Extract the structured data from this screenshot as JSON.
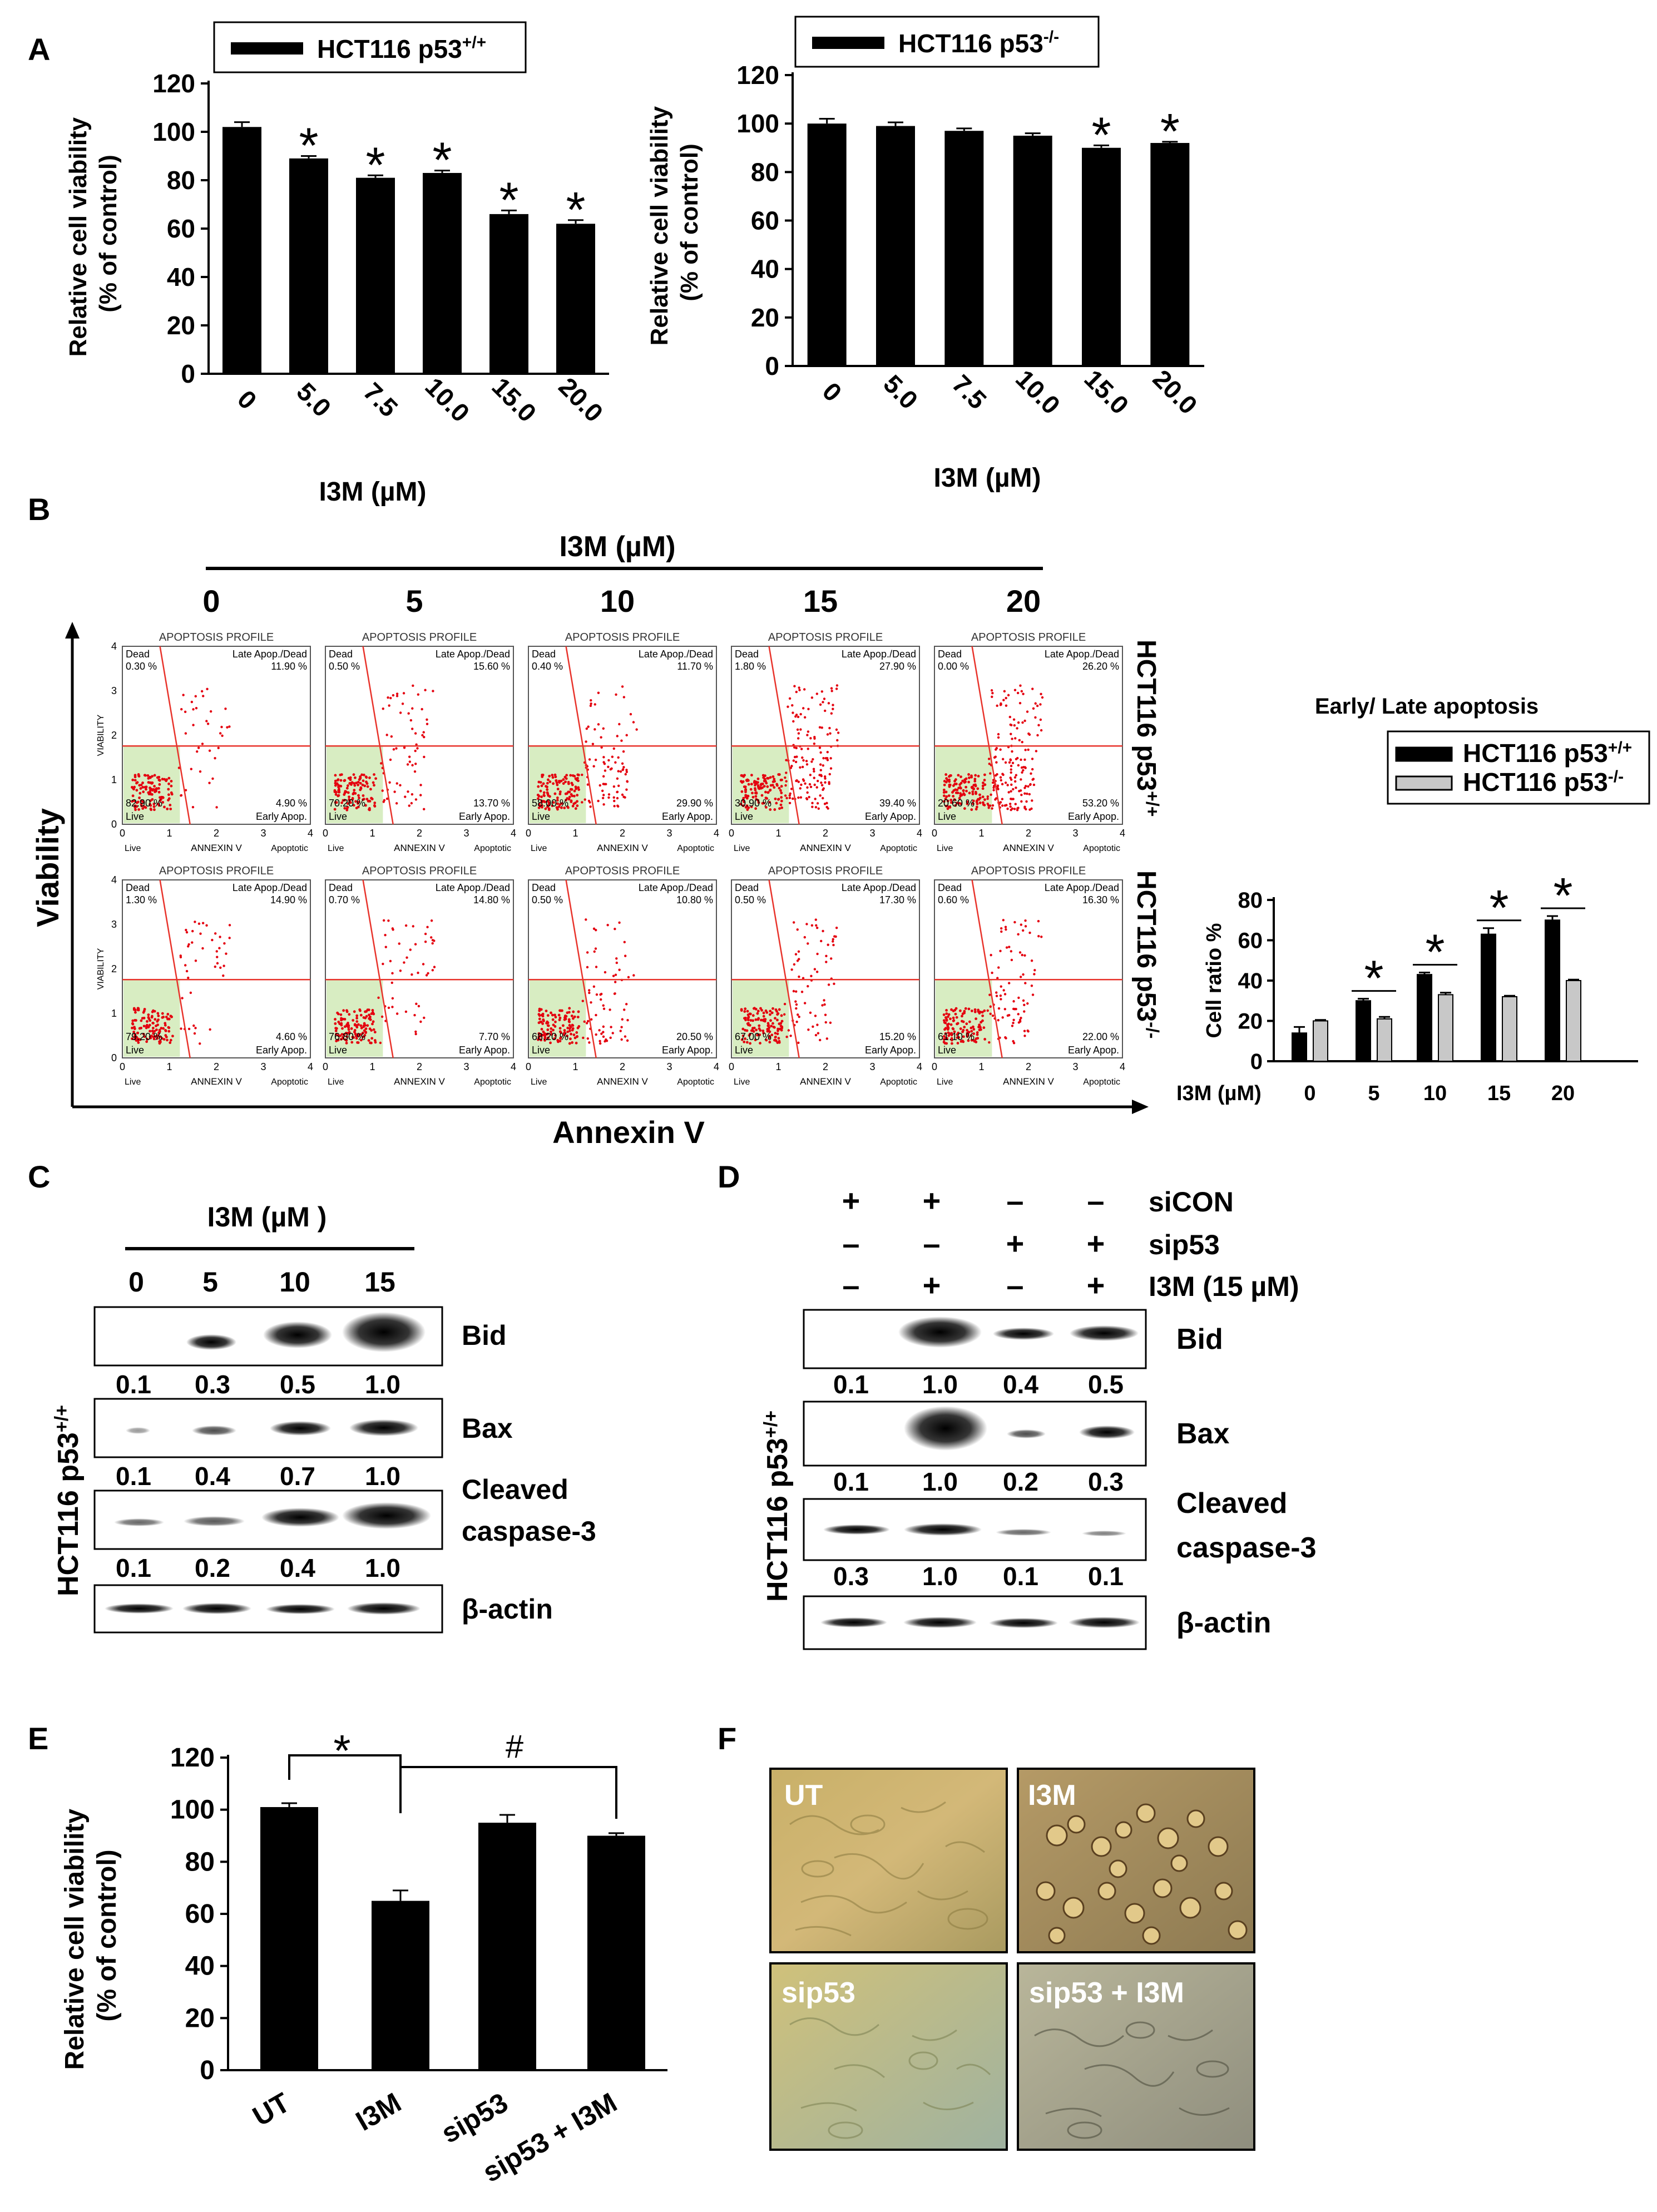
{
  "colors": {
    "bar_dark": "#000000",
    "bar_light": "#c8c8c8",
    "dot_red": "#e4000f",
    "gate_line": "#e8332b",
    "live_quadrant": "#d8edc2",
    "micro_warm": "#c9b068",
    "micro_cool": "#c2c29a"
  },
  "panels": {
    "A": {
      "letter": "A",
      "xlabel": "I3M (µM)",
      "ylabel_1": "Relative cell viability",
      "ylabel_2": "(% of control)"
    },
    "B": {
      "letter": "B",
      "treatment_title": "I3M (µM)",
      "y_axis_label": "Viability",
      "x_axis_label": "Annexin V",
      "row_labels": [
        "HCT116 p53+/+",
        "HCT116 p53-/-"
      ],
      "flow_ticks": [
        "0",
        "1",
        "2",
        "3",
        "4"
      ],
      "flow_x_caption": [
        "Live",
        "ANNEXIN V",
        "Apoptotic"
      ],
      "flow_y_caption": "VIABILITY",
      "flow_panel_title": "APOPTOSIS PROFILE",
      "quadrant_labels": {
        "dead": "Dead",
        "late": "Late Apop./Dead",
        "live": "Live",
        "early": "Early Apop."
      }
    },
    "C": {
      "letter": "C",
      "treatment_title": "I3M (µM )",
      "doses": [
        "0",
        "5",
        "10",
        "15"
      ],
      "cell_line": "HCT116 p53+/+",
      "blots": [
        {
          "label": "Bid",
          "values": [
            "0.1",
            "0.3",
            "0.5",
            "1.0"
          ]
        },
        {
          "label": "Bax",
          "values": [
            "0.1",
            "0.4",
            "0.7",
            "1.0"
          ]
        },
        {
          "label_1": "Cleaved",
          "label_2": "caspase-3",
          "values": [
            "0.1",
            "0.2",
            "0.4",
            "1.0"
          ]
        },
        {
          "label": "β-actin"
        }
      ]
    },
    "D": {
      "letter": "D",
      "cell_line": "HCT116 p53+/+",
      "conditions": [
        {
          "label": "siCON",
          "signs": [
            "+",
            "+",
            "–",
            "–"
          ]
        },
        {
          "label": "sip53",
          "signs": [
            "–",
            "–",
            "+",
            "+"
          ]
        },
        {
          "label": "I3M (15 µM)",
          "signs": [
            "–",
            "+",
            "–",
            "+"
          ]
        }
      ],
      "blots": [
        {
          "label": "Bid",
          "values": [
            "0.1",
            "1.0",
            "0.4",
            "0.5"
          ]
        },
        {
          "label": "Bax",
          "values": [
            "0.1",
            "1.0",
            "0.2",
            "0.3"
          ]
        },
        {
          "label_1": "Cleaved",
          "label_2": "caspase-3",
          "values": [
            "0.3",
            "1.0",
            "0.1",
            "0.1"
          ]
        },
        {
          "label": "β-actin"
        }
      ]
    },
    "E": {
      "letter": "E",
      "ylabel_1": "Relative cell viability",
      "ylabel_2": "(% of control)",
      "sig_star": "*",
      "sig_hash": "#"
    },
    "F": {
      "letter": "F",
      "images": [
        {
          "caption": "UT"
        },
        {
          "caption": "I3M"
        },
        {
          "caption": "sip53"
        },
        {
          "caption": "sip53 + I3M"
        }
      ]
    }
  },
  "chart_data": [
    {
      "id": "A-left",
      "type": "bar",
      "legend": "HCT116 p53+/+",
      "legend_main": "HCT116 p53",
      "legend_sup": "+/+",
      "categories": [
        "0",
        "5.0",
        "7.5",
        "10.0",
        "15.0",
        "20.0"
      ],
      "values": [
        102,
        89,
        81,
        83,
        66,
        62
      ],
      "errors": [
        2,
        1,
        1,
        1,
        1.5,
        1.5
      ],
      "significant": [
        false,
        true,
        true,
        true,
        true,
        true
      ],
      "ylim": [
        0,
        120
      ],
      "yticks": [
        "0",
        "20",
        "40",
        "60",
        "80",
        "100",
        "120"
      ],
      "xlabel": "I3M (µM)",
      "ylabel": "Relative cell viability (% of control)"
    },
    {
      "id": "A-right",
      "type": "bar",
      "legend": "HCT116 p53-/-",
      "legend_main": "HCT116 p53",
      "legend_sup": "-/-",
      "categories": [
        "0",
        "5.0",
        "7.5",
        "10.0",
        "15.0",
        "20.0"
      ],
      "values": [
        100,
        99,
        97,
        95,
        90,
        92
      ],
      "errors": [
        2,
        1.5,
        1,
        1,
        1,
        0.5
      ],
      "significant": [
        false,
        false,
        false,
        false,
        true,
        true
      ],
      "ylim": [
        0,
        120
      ],
      "yticks": [
        "0",
        "20",
        "40",
        "60",
        "80",
        "100",
        "120"
      ],
      "xlabel": "I3M (µM)",
      "ylabel": "Relative cell viability (% of control)"
    },
    {
      "id": "B-flow",
      "type": "scatter",
      "title": "APOPTOSIS PROFILE",
      "doses": [
        "0",
        "5",
        "10",
        "15",
        "20"
      ],
      "rows": [
        {
          "cell_line": "HCT116 p53+/+",
          "dead": [
            "0.30 %",
            "0.50 %",
            "0.40 %",
            "1.80 %",
            "0.00 %"
          ],
          "late": [
            "11.90 %",
            "15.60 %",
            "11.70 %",
            "27.90 %",
            "26.20 %"
          ],
          "live": [
            "82.90 %",
            "70.20 %",
            "58.00 %",
            "30.90 %",
            "20.60 %"
          ],
          "early": [
            "4.90 %",
            "13.70 %",
            "29.90 %",
            "39.40 %",
            "53.20 %"
          ]
        },
        {
          "cell_line": "HCT116 p53-/-",
          "dead": [
            "1.30 %",
            "0.70 %",
            "0.50 %",
            "0.50 %",
            "0.60 %"
          ],
          "late": [
            "14.90 %",
            "14.80 %",
            "10.80 %",
            "17.30 %",
            "16.30 %"
          ],
          "live": [
            "79.20 %",
            "76.80 %",
            "68.20 %",
            "67.00 %",
            "61.10 %"
          ],
          "early": [
            "4.60 %",
            "7.70 %",
            "20.50 %",
            "15.20 %",
            "22.00 %"
          ]
        }
      ]
    },
    {
      "id": "B-bar",
      "type": "bar",
      "title": "Early/ Late apoptosis",
      "categories": [
        "0",
        "5",
        "10",
        "15",
        "20"
      ],
      "x_prefix": "I3M (µM)",
      "series": [
        {
          "name": "HCT116 p53+/+",
          "legend_main": "HCT116 p53",
          "legend_sup": "+/+",
          "values": [
            14,
            30,
            43,
            63,
            70
          ],
          "errors": [
            3,
            1,
            1,
            3,
            2
          ]
        },
        {
          "name": "HCT116 p53-/-",
          "legend_main": "HCT116 p53",
          "legend_sup": "-/-",
          "values": [
            20,
            21,
            33,
            32,
            40
          ],
          "errors": [
            0.5,
            1,
            1,
            0.5,
            0.5
          ]
        }
      ],
      "significant": [
        false,
        true,
        true,
        true,
        true
      ],
      "ylim": [
        0,
        80
      ],
      "yticks": [
        "0",
        "20",
        "40",
        "60",
        "80"
      ],
      "ylabel": "Cell ratio %"
    },
    {
      "id": "E",
      "type": "bar",
      "categories": [
        "UT",
        "I3M",
        "sip53",
        "sip53 + I3M"
      ],
      "values": [
        101,
        65,
        95,
        90
      ],
      "errors": [
        1.5,
        4,
        3,
        1
      ],
      "ylim": [
        0,
        120
      ],
      "yticks": [
        "0",
        "20",
        "40",
        "60",
        "80",
        "100",
        "120"
      ],
      "ylabel": "Relative cell viability (% of control)"
    }
  ]
}
